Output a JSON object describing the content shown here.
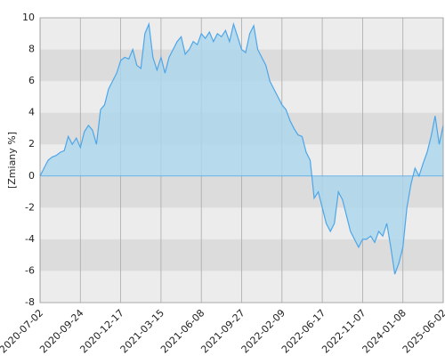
{
  "chart_data": {
    "type": "area",
    "y_label": "[Zmiany %]",
    "categories": [
      "2020-07-02",
      null,
      null,
      null,
      null,
      null,
      null,
      null,
      null,
      null,
      "2020-09-24",
      null,
      null,
      null,
      null,
      null,
      null,
      null,
      null,
      null,
      "2020-12-17",
      null,
      null,
      null,
      null,
      null,
      null,
      null,
      null,
      null,
      "2021-03-15",
      null,
      null,
      null,
      null,
      null,
      null,
      null,
      null,
      null,
      "2021-06-08",
      null,
      null,
      null,
      null,
      null,
      null,
      null,
      null,
      null,
      "2021-09-27",
      null,
      null,
      null,
      null,
      null,
      null,
      null,
      null,
      null,
      "2022-02-09",
      null,
      null,
      null,
      null,
      null,
      null,
      null,
      null,
      null,
      "2022-06-17",
      null,
      null,
      null,
      null,
      null,
      null,
      null,
      null,
      null,
      "2022-11-07",
      null,
      null,
      null,
      null,
      null,
      null,
      null,
      null,
      null,
      "2024-01-08",
      null,
      null,
      null,
      null,
      null,
      null,
      null,
      null,
      null,
      "2025-06-02"
    ],
    "values": [
      0,
      0.5,
      1.0,
      1.2,
      1.3,
      1.5,
      1.6,
      2.5,
      2.0,
      2.4,
      1.8,
      2.8,
      3.2,
      2.9,
      2.0,
      4.2,
      4.5,
      5.5,
      6.0,
      6.5,
      7.3,
      7.5,
      7.4,
      8.0,
      7.0,
      6.8,
      9.0,
      9.6,
      7.5,
      6.7,
      7.5,
      6.5,
      7.5,
      8.0,
      8.5,
      8.8,
      7.7,
      8.0,
      8.5,
      8.3,
      9.0,
      8.7,
      9.1,
      8.5,
      9.0,
      8.8,
      9.2,
      8.5,
      9.6,
      8.8,
      8.0,
      7.8,
      9.0,
      9.5,
      8.0,
      7.5,
      7.0,
      6.0,
      5.5,
      5.0,
      4.5,
      4.2,
      3.5,
      3.0,
      2.6,
      2.5,
      1.5,
      1.0,
      -1.4,
      -1.0,
      -2.0,
      -3.0,
      -3.5,
      -3.0,
      -1.0,
      -1.5,
      -2.5,
      -3.5,
      -4.0,
      -4.5,
      -4.0,
      -4.0,
      -3.8,
      -4.2,
      -3.5,
      -3.8,
      -3.0,
      -4.5,
      -6.2,
      -5.5,
      -4.5,
      -2.0,
      -0.5,
      0.5,
      0.0,
      0.8,
      1.5,
      2.5,
      3.8,
      2.0,
      3.2
    ],
    "color": "#4da6e8",
    "fill": "#aad6ee",
    "ylim": [
      -8,
      10
    ],
    "yticks": [
      -8,
      -6,
      -4,
      -2,
      0,
      2,
      4,
      6,
      8,
      10
    ],
    "grid": true
  }
}
